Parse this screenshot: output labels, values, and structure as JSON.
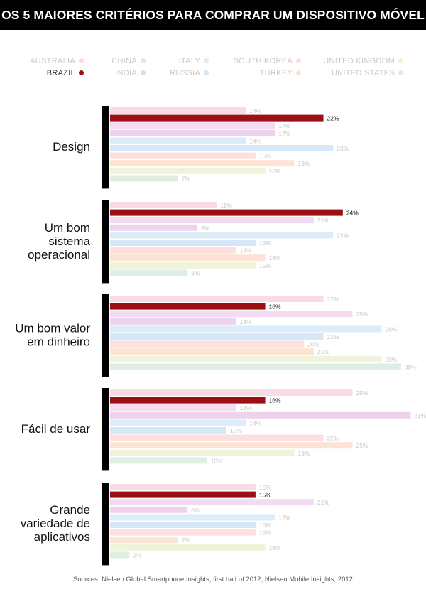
{
  "title": "OS 5 MAIORES CRITÉRIOS PARA COMPRAR UM DISPOSITIVO MÓVEL",
  "source": "Sources: Nielsen Global Smartphone Insights, first half of 2012; Nielsen Mobile Insights, 2012",
  "colors": {
    "Australia": "#f8dbe3",
    "Brazil": "#9b0f15",
    "China": "#f3dcf2",
    "India": "#eed3ec",
    "Italy": "#dcecf9",
    "Russia": "#d6e8f7",
    "South Korea": "#fbe0dd",
    "Turkey": "#fde3d4",
    "United Kingdom": "#eef3da",
    "United States": "#dfeee2"
  },
  "legend": [
    {
      "label": "AUSTRALIA",
      "series": "Australia"
    },
    {
      "label": "BRAZIL",
      "series": "Brazil",
      "highlight": true
    },
    {
      "label": "CHINA",
      "series": "China"
    },
    {
      "label": "INDIA",
      "series": "India"
    },
    {
      "label": "ITALY",
      "series": "Italy"
    },
    {
      "label": "RUSSIA",
      "series": "Russia"
    },
    {
      "label": "SOUTH KOREA",
      "series": "South Korea"
    },
    {
      "label": "TURKEY",
      "series": "Turkey"
    },
    {
      "label": "UNITED KINGDOM",
      "series": "United Kingdom"
    },
    {
      "label": "UNITED STATES",
      "series": "United States"
    }
  ],
  "chart_data": {
    "type": "bar",
    "orientation": "horizontal",
    "categories": [
      [
        "Design"
      ],
      [
        "Um bom",
        "sistema",
        "operacional"
      ],
      [
        "Um bom valor",
        "em dinheiro"
      ],
      [
        "Fácil de usar"
      ],
      [
        "Grande",
        "variedade de",
        "aplicativos"
      ]
    ],
    "series": [
      {
        "name": "Australia",
        "values": [
          14,
          11,
          22,
          25,
          15
        ]
      },
      {
        "name": "Brazil",
        "values": [
          22,
          24,
          16,
          16,
          15
        ]
      },
      {
        "name": "China",
        "values": [
          17,
          21,
          25,
          13,
          21
        ]
      },
      {
        "name": "India",
        "values": [
          17,
          9,
          13,
          31,
          8
        ]
      },
      {
        "name": "Italy",
        "values": [
          14,
          23,
          28,
          14,
          17
        ]
      },
      {
        "name": "Russia",
        "values": [
          23,
          15,
          22,
          12,
          15
        ]
      },
      {
        "name": "South Korea",
        "values": [
          15,
          13,
          20,
          22,
          15
        ]
      },
      {
        "name": "Turkey",
        "values": [
          19,
          16,
          21,
          25,
          7
        ]
      },
      {
        "name": "United Kingdom",
        "values": [
          16,
          15,
          28,
          19,
          16
        ]
      },
      {
        "name": "United States",
        "values": [
          7,
          8,
          30,
          10,
          2
        ]
      }
    ],
    "value_suffix": "%",
    "xlim": [
      0,
      31
    ],
    "grid": false,
    "legend_position": "top"
  }
}
